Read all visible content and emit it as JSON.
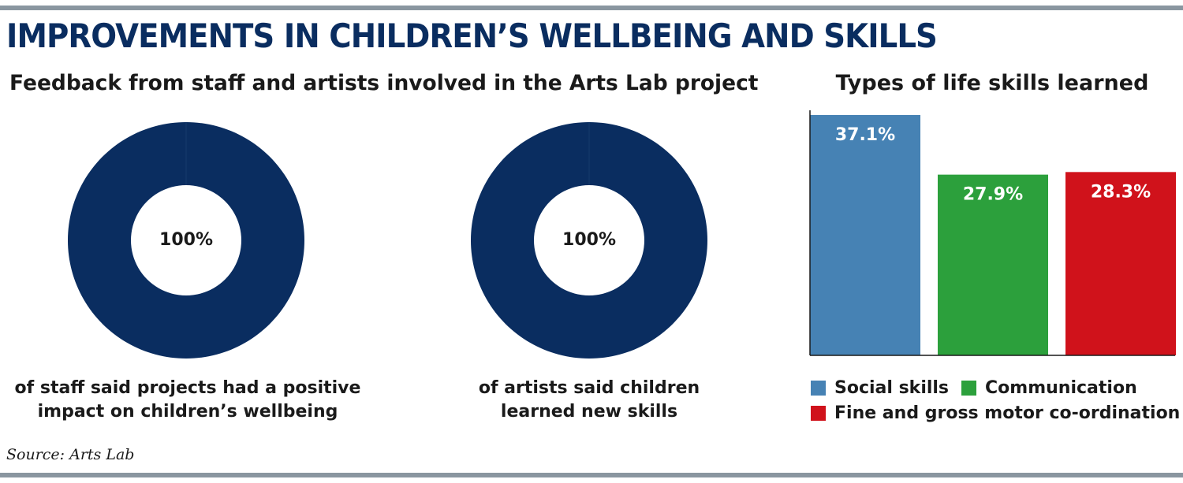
{
  "header": {
    "title": "IMPROVEMENTS IN CHILDREN’S WELLBEING AND SKILLS"
  },
  "left_panel": {
    "subtitle": "Feedback from staff and artists involved in the Arts Lab project",
    "donuts": [
      {
        "value_label": "100%",
        "caption_lines": [
          "of staff said projects had a positive",
          "impact on children’s wellbeing"
        ]
      },
      {
        "value_label": "100%",
        "caption_lines": [
          "of artists said children",
          "learned new skills"
        ]
      }
    ]
  },
  "right_panel": {
    "subtitle": "Types of life skills learned"
  },
  "footer": {
    "source": "Source: Arts Lab"
  },
  "colors": {
    "title": "#0a2d60",
    "donut": "#0a2d60",
    "social": "#4682b4",
    "communication": "#2ca03c",
    "motor": "#d0121b"
  },
  "chart_data": [
    {
      "type": "pie",
      "title": "",
      "values": [
        100
      ],
      "labels": [
        "100%"
      ],
      "caption": "of staff said projects had a positive impact on children’s wellbeing"
    },
    {
      "type": "pie",
      "title": "",
      "values": [
        100
      ],
      "labels": [
        "100%"
      ],
      "caption": "of artists said children learned new skills"
    },
    {
      "type": "bar",
      "title": "Types of life skills learned",
      "categories": [
        "Social skills",
        "Communication",
        "Fine and gross motor co-ordination"
      ],
      "values": [
        37.1,
        27.9,
        28.3
      ],
      "data_labels": [
        "37.1%",
        "27.9%",
        "28.3%"
      ],
      "colors": [
        "#4682b4",
        "#2ca03c",
        "#d0121b"
      ],
      "ylim": [
        0,
        37.1
      ],
      "grid": false,
      "legend": "bottom"
    }
  ]
}
